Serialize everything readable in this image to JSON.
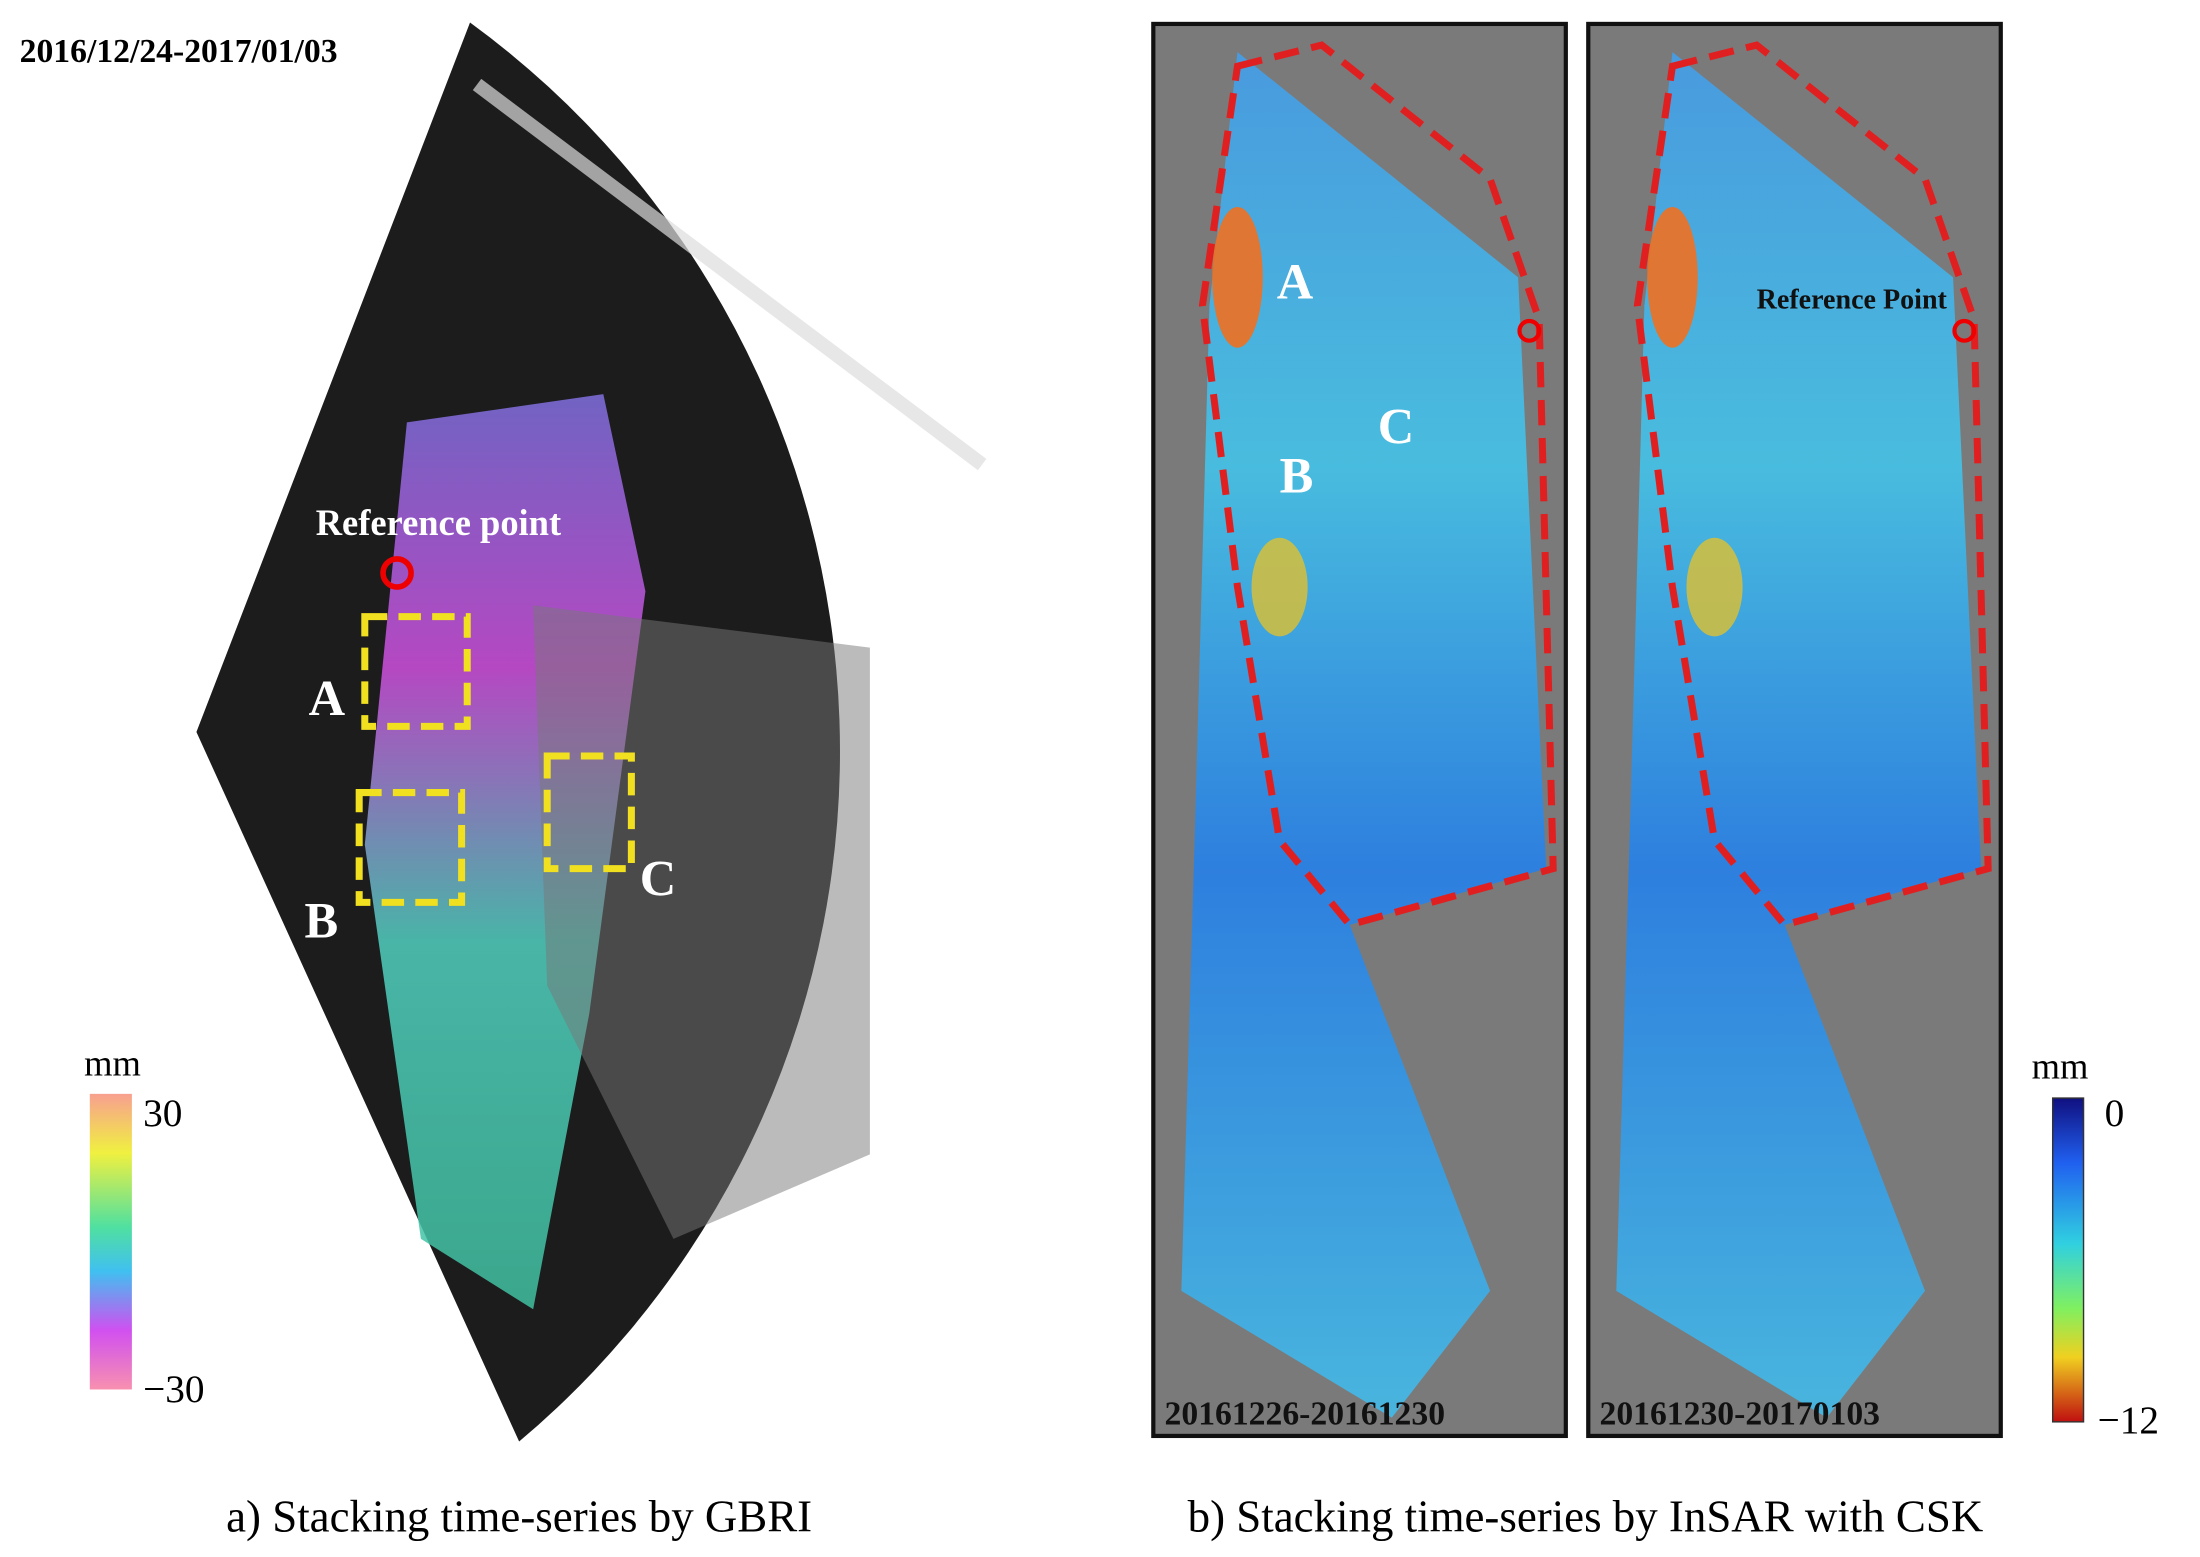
{
  "panel_a": {
    "date": "2016/12/24-2017/01/03",
    "reference_label": "Reference point",
    "regions": [
      "A",
      "B",
      "C"
    ],
    "colorbar": {
      "unit": "mm",
      "max": "30",
      "min": "−30"
    },
    "caption": "a) Stacking time-series by GBRI"
  },
  "panel_b": {
    "maps": [
      {
        "date": "20161226-20161230",
        "labels": [
          "A",
          "B",
          "C"
        ]
      },
      {
        "date": "20161230-20170103",
        "reference_label": "Reference Point"
      }
    ],
    "colorbar": {
      "unit": "mm",
      "max": "0",
      "min": "−12"
    },
    "caption": "b) Stacking time-series by InSAR with CSK"
  }
}
